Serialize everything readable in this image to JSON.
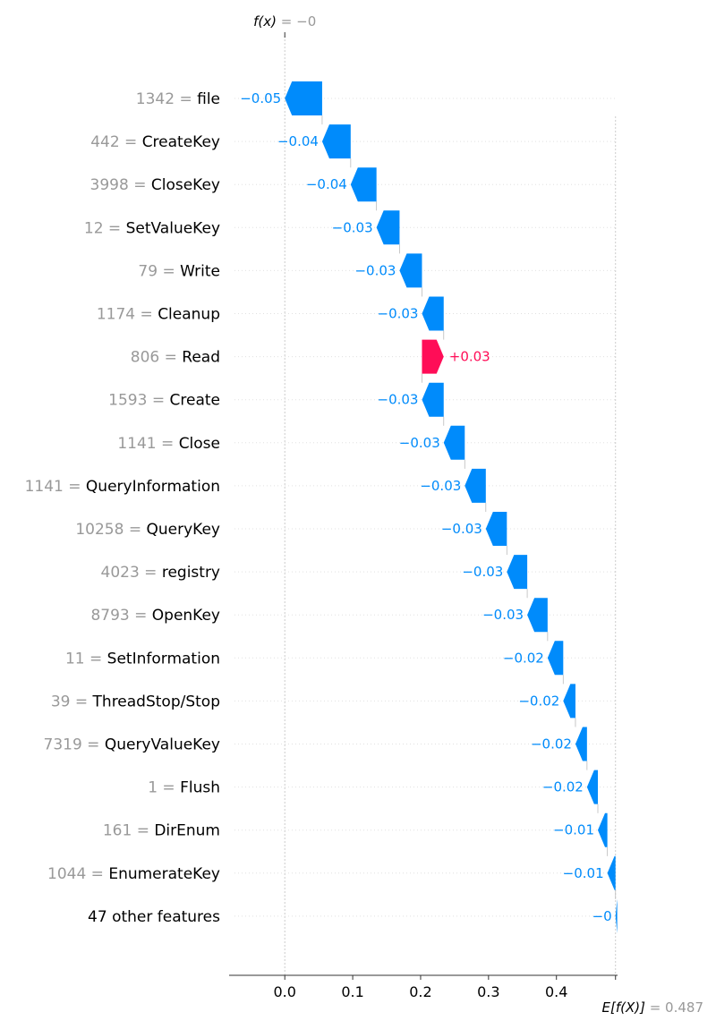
{
  "chart_data": {
    "type": "waterfall",
    "top_label": {
      "name": "f(x)",
      "eq": " = ",
      "value": "−0",
      "x": 0.0
    },
    "bottom_label": {
      "name": "E[f(X)]",
      "eq": " = ",
      "value": "0.487",
      "x": 0.487
    },
    "xlim": [
      -0.082,
      0.49
    ],
    "xticks": [
      {
        "value": 0.0,
        "label": "0.0"
      },
      {
        "value": 0.1,
        "label": "0.1"
      },
      {
        "value": 0.2,
        "label": "0.2"
      },
      {
        "value": 0.3,
        "label": "0.3"
      },
      {
        "value": 0.4,
        "label": "0.4"
      }
    ],
    "features": [
      {
        "value": "1342",
        "name": "file",
        "start": 0.0,
        "end": 0.055,
        "label": "−0.05"
      },
      {
        "value": "442",
        "name": "CreateKey",
        "start": 0.055,
        "end": 0.097,
        "label": "−0.04"
      },
      {
        "value": "3998",
        "name": "CloseKey",
        "start": 0.097,
        "end": 0.135,
        "label": "−0.04"
      },
      {
        "value": "12",
        "name": "SetValueKey",
        "start": 0.135,
        "end": 0.169,
        "label": "−0.03"
      },
      {
        "value": "79",
        "name": "Write",
        "start": 0.169,
        "end": 0.202,
        "label": "−0.03"
      },
      {
        "value": "1174",
        "name": "Cleanup",
        "start": 0.202,
        "end": 0.234,
        "label": "−0.03"
      },
      {
        "value": "806",
        "name": "Read",
        "start": 0.234,
        "end": 0.202,
        "label": "+0.03"
      },
      {
        "value": "1593",
        "name": "Create",
        "start": 0.202,
        "end": 0.234,
        "label": "−0.03"
      },
      {
        "value": "1141",
        "name": "Close",
        "start": 0.234,
        "end": 0.265,
        "label": "−0.03"
      },
      {
        "value": "1141",
        "name": "QueryInformation",
        "start": 0.265,
        "end": 0.296,
        "label": "−0.03"
      },
      {
        "value": "10258",
        "name": "QueryKey",
        "start": 0.296,
        "end": 0.327,
        "label": "−0.03"
      },
      {
        "value": "4023",
        "name": "registry",
        "start": 0.327,
        "end": 0.357,
        "label": "−0.03"
      },
      {
        "value": "8793",
        "name": "OpenKey",
        "start": 0.357,
        "end": 0.387,
        "label": "−0.03"
      },
      {
        "value": "11",
        "name": "SetInformation",
        "start": 0.387,
        "end": 0.41,
        "label": "−0.02"
      },
      {
        "value": "39",
        "name": "ThreadStop/Stop",
        "start": 0.41,
        "end": 0.428,
        "label": "−0.02"
      },
      {
        "value": "7319",
        "name": "QueryValueKey",
        "start": 0.428,
        "end": 0.445,
        "label": "−0.02"
      },
      {
        "value": "1",
        "name": "Flush",
        "start": 0.445,
        "end": 0.461,
        "label": "−0.02"
      },
      {
        "value": "161",
        "name": "DirEnum",
        "start": 0.461,
        "end": 0.475,
        "label": "−0.01"
      },
      {
        "value": "1044",
        "name": "EnumerateKey",
        "start": 0.475,
        "end": 0.487,
        "label": "−0.01"
      },
      {
        "value": "",
        "name": "47 other features",
        "start": 0.487,
        "end": 0.4895,
        "label": "−0"
      }
    ],
    "colors": {
      "positive": "#ff0d57",
      "negative": "#008bfb",
      "muted": "#999999",
      "axis": "#333333",
      "grid": "#cccccc"
    }
  }
}
